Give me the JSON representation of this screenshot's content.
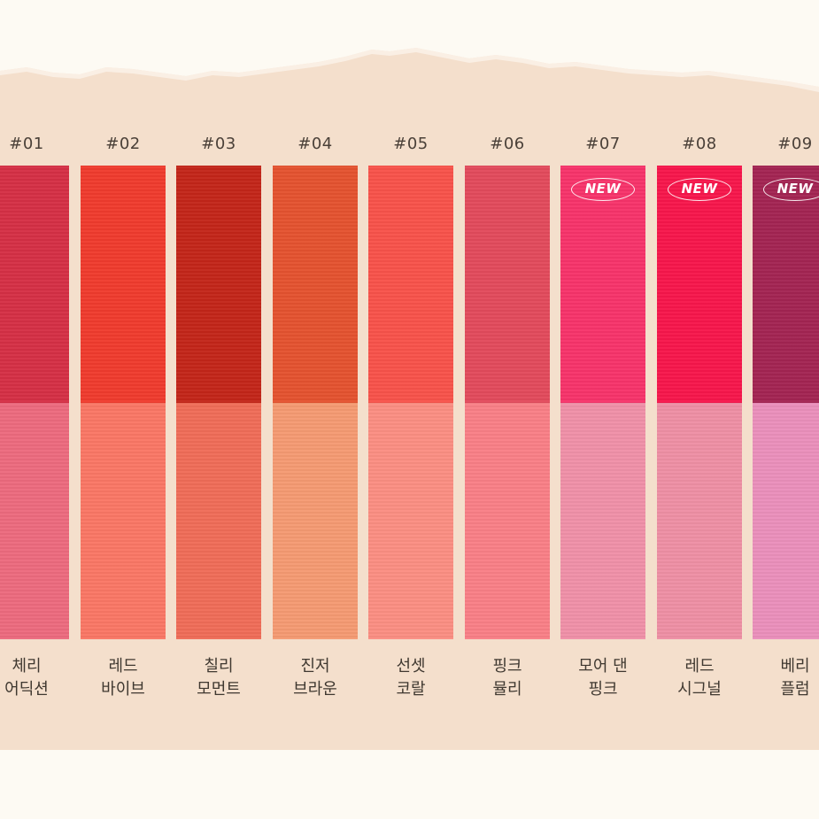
{
  "colors": {
    "page": "#fdfaf3",
    "band": "#f4dfcc"
  },
  "shades": [
    {
      "code": "#01",
      "line1": "체리",
      "line2": "어딕션",
      "new": false,
      "top": "#d52f45",
      "bottom": "#ec6a7e"
    },
    {
      "code": "#02",
      "line1": "레드",
      "line2": "바이브",
      "new": false,
      "top": "#ef3b2d",
      "bottom": "#fa7765"
    },
    {
      "code": "#03",
      "line1": "칠리",
      "line2": "모먼트",
      "new": false,
      "top": "#c32519",
      "bottom": "#ef6c58"
    },
    {
      "code": "#04",
      "line1": "진저",
      "line2": "브라운",
      "new": false,
      "top": "#e4522f",
      "bottom": "#f59a72"
    },
    {
      "code": "#05",
      "line1": "선셋",
      "line2": "코랄",
      "new": false,
      "top": "#f8524a",
      "bottom": "#fb8e82"
    },
    {
      "code": "#06",
      "line1": "핑크",
      "line2": "뮬리",
      "new": false,
      "top": "#e24a5c",
      "bottom": "#f97f86"
    },
    {
      "code": "#07",
      "line1": "모어 댄",
      "line2": "핑크",
      "new": true,
      "top": "#f7336a",
      "bottom": "#f090a8"
    },
    {
      "code": "#08",
      "line1": "레드",
      "line2": "시그널",
      "new": true,
      "top": "#f7164b",
      "bottom": "#ee8fa4"
    },
    {
      "code": "#09",
      "line1": "베리",
      "line2": "플럼",
      "new": true,
      "top": "#a32452",
      "bottom": "#ea8fbb"
    }
  ],
  "badge_label": "NEW"
}
